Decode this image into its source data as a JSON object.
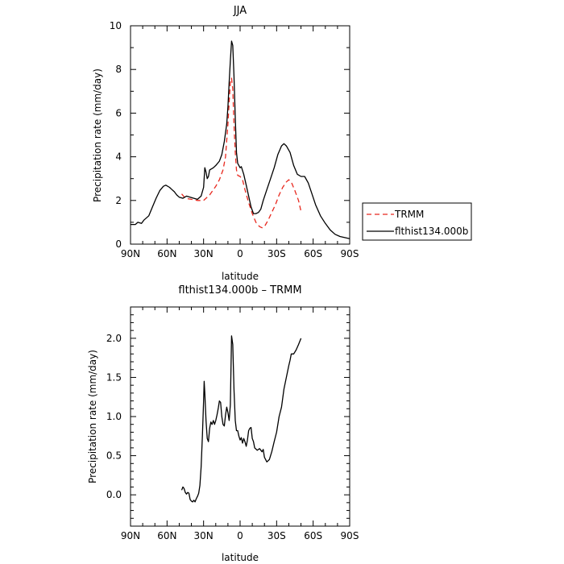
{
  "chart_data": [
    {
      "type": "line",
      "title": "JJA",
      "xlabel": "latitude",
      "ylabel": "Precipitation rate (mm/day)",
      "xlim": [
        90,
        -90
      ],
      "ylim": [
        0,
        10
      ],
      "x_ticks": [
        {
          "value": 90,
          "label": "90N"
        },
        {
          "value": 60,
          "label": "60N"
        },
        {
          "value": 30,
          "label": "30N"
        },
        {
          "value": 0,
          "label": "0"
        },
        {
          "value": -30,
          "label": "30S"
        },
        {
          "value": -60,
          "label": "60S"
        },
        {
          "value": -90,
          "label": "90S"
        }
      ],
      "y_ticks": [
        {
          "value": 0,
          "label": "0"
        },
        {
          "value": 2,
          "label": "2"
        },
        {
          "value": 4,
          "label": "4"
        },
        {
          "value": 6,
          "label": "6"
        },
        {
          "value": 8,
          "label": "8"
        },
        {
          "value": 10,
          "label": "10"
        }
      ],
      "legend_position": "right",
      "series": [
        {
          "name": "TRMM",
          "color": "#e8281e",
          "dashed": true,
          "points": [
            [
              48,
              2.3
            ],
            [
              45,
              2.1
            ],
            [
              40,
              2.05
            ],
            [
              35,
              2.0
            ],
            [
              30,
              2.0
            ],
            [
              25,
              2.25
            ],
            [
              20,
              2.65
            ],
            [
              17,
              2.95
            ],
            [
              14,
              3.4
            ],
            [
              12,
              4.0
            ],
            [
              10,
              5.5
            ],
            [
              9,
              6.5
            ],
            [
              8,
              7.4
            ],
            [
              7,
              7.6
            ],
            [
              6,
              7.1
            ],
            [
              5,
              5.5
            ],
            [
              4,
              4.2
            ],
            [
              3,
              3.4
            ],
            [
              2,
              3.15
            ],
            [
              0,
              3.1
            ],
            [
              -2,
              2.95
            ],
            [
              -4,
              2.5
            ],
            [
              -7,
              1.9
            ],
            [
              -10,
              1.4
            ],
            [
              -13,
              1.0
            ],
            [
              -16,
              0.8
            ],
            [
              -18,
              0.75
            ],
            [
              -20,
              0.8
            ],
            [
              -23,
              1.1
            ],
            [
              -26,
              1.45
            ],
            [
              -29,
              1.8
            ],
            [
              -32,
              2.25
            ],
            [
              -35,
              2.6
            ],
            [
              -38,
              2.85
            ],
            [
              -40,
              2.95
            ],
            [
              -42,
              2.85
            ],
            [
              -45,
              2.45
            ],
            [
              -48,
              2.0
            ],
            [
              -50,
              1.5
            ]
          ]
        },
        {
          "name": "flthist134.000b",
          "color": "#000000",
          "dashed": false,
          "points": [
            [
              90,
              0.9
            ],
            [
              86,
              0.9
            ],
            [
              84,
              1.0
            ],
            [
              81,
              0.95
            ],
            [
              79,
              1.1
            ],
            [
              75,
              1.3
            ],
            [
              72,
              1.7
            ],
            [
              69,
              2.1
            ],
            [
              66,
              2.45
            ],
            [
              63,
              2.65
            ],
            [
              61,
              2.7
            ],
            [
              58,
              2.6
            ],
            [
              56,
              2.5
            ],
            [
              54,
              2.4
            ],
            [
              52,
              2.25
            ],
            [
              50,
              2.15
            ],
            [
              47,
              2.1
            ],
            [
              44,
              2.2
            ],
            [
              41,
              2.15
            ],
            [
              38,
              2.1
            ],
            [
              35,
              2.05
            ],
            [
              32,
              2.2
            ],
            [
              30,
              2.6
            ],
            [
              29,
              3.5
            ],
            [
              28,
              3.3
            ],
            [
              27,
              3.0
            ],
            [
              26,
              3.1
            ],
            [
              25,
              3.4
            ],
            [
              22,
              3.5
            ],
            [
              20,
              3.6
            ],
            [
              17,
              3.8
            ],
            [
              15,
              4.1
            ],
            [
              13,
              4.7
            ],
            [
              11,
              5.5
            ],
            [
              10,
              6.3
            ],
            [
              9,
              7.4
            ],
            [
              8,
              8.4
            ],
            [
              7,
              9.3
            ],
            [
              6,
              9.1
            ],
            [
              5,
              7.7
            ],
            [
              4,
              5.8
            ],
            [
              3,
              4.2
            ],
            [
              2,
              3.7
            ],
            [
              1,
              3.6
            ],
            [
              0,
              3.5
            ],
            [
              -1,
              3.55
            ],
            [
              -3,
              3.2
            ],
            [
              -5,
              2.7
            ],
            [
              -7,
              2.2
            ],
            [
              -9,
              1.7
            ],
            [
              -11,
              1.4
            ],
            [
              -13,
              1.4
            ],
            [
              -15,
              1.45
            ],
            [
              -17,
              1.6
            ],
            [
              -19,
              2.0
            ],
            [
              -22,
              2.5
            ],
            [
              -25,
              3.0
            ],
            [
              -28,
              3.5
            ],
            [
              -31,
              4.1
            ],
            [
              -34,
              4.5
            ],
            [
              -36,
              4.6
            ],
            [
              -38,
              4.5
            ],
            [
              -41,
              4.2
            ],
            [
              -44,
              3.6
            ],
            [
              -47,
              3.2
            ],
            [
              -50,
              3.1
            ],
            [
              -53,
              3.1
            ],
            [
              -56,
              2.8
            ],
            [
              -59,
              2.3
            ],
            [
              -62,
              1.8
            ],
            [
              -66,
              1.3
            ],
            [
              -70,
              0.95
            ],
            [
              -74,
              0.65
            ],
            [
              -78,
              0.45
            ],
            [
              -82,
              0.35
            ],
            [
              -86,
              0.3
            ],
            [
              -90,
              0.25
            ]
          ]
        }
      ]
    },
    {
      "type": "line",
      "title": "flthist134.000b – TRMM",
      "xlabel": "latitude",
      "ylabel": "Precipitation rate (mm/day)",
      "xlim": [
        90,
        -90
      ],
      "ylim": [
        -0.4,
        2.4
      ],
      "x_ticks": [
        {
          "value": 90,
          "label": "90N"
        },
        {
          "value": 60,
          "label": "60N"
        },
        {
          "value": 30,
          "label": "30N"
        },
        {
          "value": 0,
          "label": "0"
        },
        {
          "value": -30,
          "label": "30S"
        },
        {
          "value": -60,
          "label": "60S"
        },
        {
          "value": -90,
          "label": "90S"
        }
      ],
      "y_ticks": [
        {
          "value": 0,
          "label": "0.0"
        },
        {
          "value": 0.5,
          "label": "0.5"
        },
        {
          "value": 1,
          "label": "1.0"
        },
        {
          "value": 1.5,
          "label": "1.5"
        },
        {
          "value": 2,
          "label": "2.0"
        }
      ],
      "series": [
        {
          "name": "",
          "color": "#000000",
          "dashed": false,
          "points": [
            [
              48,
              0.06
            ],
            [
              47,
              0.1
            ],
            [
              46,
              0.08
            ],
            [
              45,
              0.03
            ],
            [
              44,
              0.01
            ],
            [
              43,
              0.03
            ],
            [
              42,
              0.02
            ],
            [
              41,
              -0.06
            ],
            [
              40,
              -0.08
            ],
            [
              39,
              -0.09
            ],
            [
              38,
              -0.07
            ],
            [
              37,
              -0.09
            ],
            [
              36,
              -0.05
            ],
            [
              35,
              -0.02
            ],
            [
              34,
              0.02
            ],
            [
              33,
              0.12
            ],
            [
              32,
              0.35
            ],
            [
              31,
              0.75
            ],
            [
              30,
              1.2
            ],
            [
              29.5,
              1.45
            ],
            [
              29,
              1.3
            ],
            [
              28,
              0.95
            ],
            [
              27,
              0.72
            ],
            [
              26,
              0.68
            ],
            [
              25,
              0.85
            ],
            [
              24,
              0.93
            ],
            [
              23,
              0.9
            ],
            [
              22,
              0.95
            ],
            [
              21,
              0.9
            ],
            [
              20,
              0.95
            ],
            [
              19,
              1.02
            ],
            [
              18,
              1.1
            ],
            [
              17,
              1.2
            ],
            [
              16,
              1.18
            ],
            [
              15,
              1.0
            ],
            [
              14,
              0.9
            ],
            [
              13,
              0.88
            ],
            [
              12,
              1.02
            ],
            [
              11,
              1.12
            ],
            [
              10,
              1.05
            ],
            [
              9,
              0.95
            ],
            [
              8,
              1.15
            ],
            [
              7,
              2.03
            ],
            [
              6,
              1.92
            ],
            [
              5,
              1.35
            ],
            [
              4,
              0.95
            ],
            [
              3,
              0.82
            ],
            [
              2,
              0.82
            ],
            [
              1,
              0.75
            ],
            [
              0,
              0.7
            ],
            [
              -1,
              0.73
            ],
            [
              -2,
              0.66
            ],
            [
              -3,
              0.72
            ],
            [
              -4,
              0.68
            ],
            [
              -5,
              0.62
            ],
            [
              -6,
              0.7
            ],
            [
              -7,
              0.82
            ],
            [
              -8,
              0.85
            ],
            [
              -9,
              0.86
            ],
            [
              -10,
              0.72
            ],
            [
              -11,
              0.68
            ],
            [
              -12,
              0.6
            ],
            [
              -14,
              0.57
            ],
            [
              -16,
              0.59
            ],
            [
              -18,
              0.55
            ],
            [
              -19,
              0.58
            ],
            [
              -20,
              0.48
            ],
            [
              -21,
              0.45
            ],
            [
              -22,
              0.42
            ],
            [
              -24,
              0.45
            ],
            [
              -26,
              0.55
            ],
            [
              -28,
              0.68
            ],
            [
              -30,
              0.8
            ],
            [
              -32,
              1.0
            ],
            [
              -34,
              1.12
            ],
            [
              -36,
              1.35
            ],
            [
              -38,
              1.5
            ],
            [
              -40,
              1.65
            ],
            [
              -41,
              1.72
            ],
            [
              -42,
              1.8
            ],
            [
              -44,
              1.8
            ],
            [
              -46,
              1.85
            ],
            [
              -48,
              1.92
            ],
            [
              -50,
              2.0
            ]
          ]
        }
      ]
    }
  ]
}
